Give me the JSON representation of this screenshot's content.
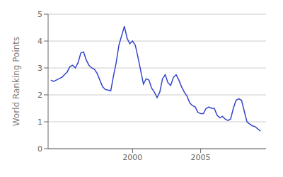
{
  "chart_data": {
    "type": "line",
    "ylabel": "World Ranking Points",
    "x": [
      1994.0,
      1994.2,
      1994.4,
      1994.6,
      1994.8,
      1995.0,
      1995.2,
      1995.4,
      1995.6,
      1995.8,
      1996.0,
      1996.2,
      1996.4,
      1996.6,
      1996.8,
      1997.0,
      1997.2,
      1997.4,
      1997.6,
      1997.8,
      1998.0,
      1998.2,
      1998.4,
      1998.6,
      1998.8,
      1999.0,
      1999.2,
      1999.4,
      1999.6,
      1999.8,
      2000.0,
      2000.2,
      2000.4,
      2000.6,
      2000.8,
      2001.0,
      2001.2,
      2001.4,
      2001.6,
      2001.8,
      2002.0,
      2002.2,
      2002.4,
      2002.6,
      2002.8,
      2003.0,
      2003.2,
      2003.4,
      2003.6,
      2003.8,
      2004.0,
      2004.2,
      2004.4,
      2004.6,
      2004.8,
      2005.0,
      2005.2,
      2005.4,
      2005.6,
      2005.8,
      2006.0,
      2006.2,
      2006.4,
      2006.6,
      2006.8,
      2007.0,
      2007.2,
      2007.4,
      2007.6,
      2007.8,
      2008.0,
      2008.2,
      2008.4,
      2008.6,
      2008.8,
      2009.0,
      2009.4
    ],
    "values": [
      2.55,
      2.5,
      2.55,
      2.6,
      2.65,
      2.75,
      2.85,
      3.05,
      3.1,
      3.0,
      3.2,
      3.55,
      3.6,
      3.3,
      3.1,
      3.0,
      2.95,
      2.8,
      2.55,
      2.3,
      2.2,
      2.18,
      2.15,
      2.7,
      3.2,
      3.85,
      4.2,
      4.55,
      4.1,
      3.9,
      4.0,
      3.85,
      3.4,
      2.9,
      2.4,
      2.6,
      2.55,
      2.25,
      2.1,
      1.9,
      2.1,
      2.6,
      2.75,
      2.45,
      2.35,
      2.65,
      2.75,
      2.55,
      2.3,
      2.1,
      1.95,
      1.7,
      1.6,
      1.55,
      1.35,
      1.3,
      1.3,
      1.5,
      1.55,
      1.5,
      1.5,
      1.25,
      1.15,
      1.2,
      1.1,
      1.05,
      1.1,
      1.5,
      1.8,
      1.85,
      1.8,
      1.4,
      1.0,
      0.92,
      0.85,
      0.82,
      0.65
    ],
    "color": "#3344cc",
    "xlim": [
      1993.8,
      2009.8
    ],
    "ylim": [
      0,
      5
    ],
    "xticks": [
      2000,
      2005
    ],
    "yticks": [
      0,
      1,
      2,
      3,
      4,
      5
    ],
    "grid": true
  }
}
